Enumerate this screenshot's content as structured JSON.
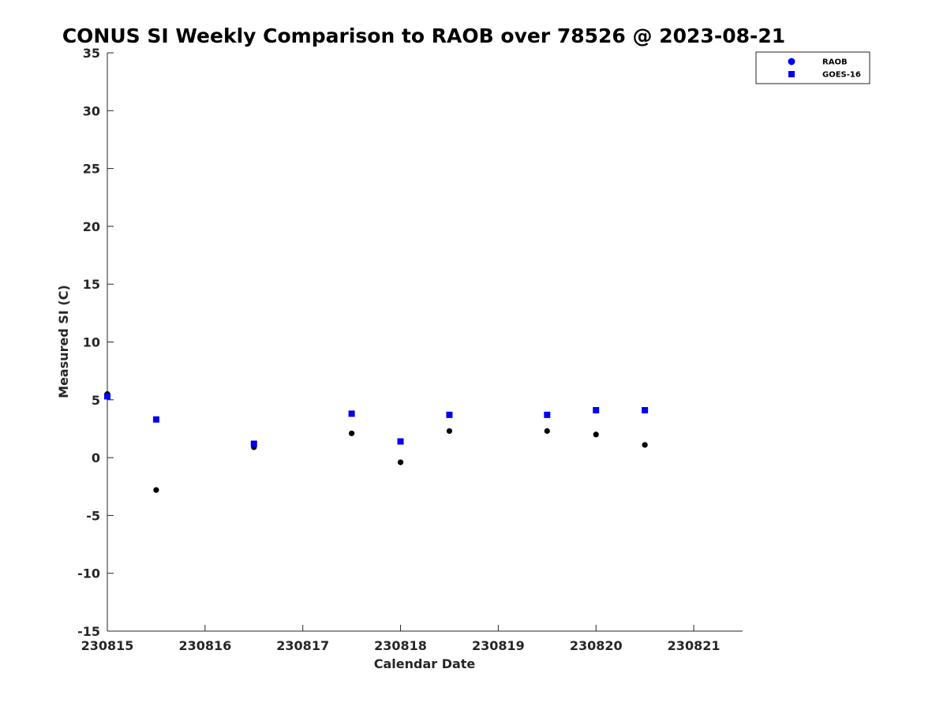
{
  "chart_data": {
    "type": "scatter",
    "title": "CONUS SI Weekly Comparison to RAOB over 78526 @ 2023-08-21",
    "xlabel": "Calendar Date",
    "ylabel": "Measured SI (C)",
    "xlim": [
      "2023-08-15T00:00",
      "2023-08-21T12:00"
    ],
    "ylim": [
      -15,
      35
    ],
    "x_ticks": [
      "2023-08-15",
      "2023-08-16",
      "2023-08-17",
      "2023-08-18",
      "2023-08-19",
      "2023-08-20",
      "2023-08-21"
    ],
    "x_tick_labels": [
      "230815",
      "230816",
      "230817",
      "230818",
      "230819",
      "230820",
      "230821"
    ],
    "y_ticks": [
      -15,
      -10,
      -5,
      0,
      5,
      10,
      15,
      20,
      25,
      30,
      35
    ],
    "grid": false,
    "legend_position": "top-right",
    "series": [
      {
        "name": "RAOB",
        "marker": "circle",
        "color": "#000000",
        "legend_color": "#0000ee",
        "points": [
          {
            "x": "2023-08-15T00:00",
            "y": 5.5
          },
          {
            "x": "2023-08-15T12:00",
            "y": -2.8
          },
          {
            "x": "2023-08-16T12:00",
            "y": 0.9
          },
          {
            "x": "2023-08-17T12:00",
            "y": 2.1
          },
          {
            "x": "2023-08-18T00:00",
            "y": -0.4
          },
          {
            "x": "2023-08-18T12:00",
            "y": 2.3
          },
          {
            "x": "2023-08-19T12:00",
            "y": 2.3
          },
          {
            "x": "2023-08-20T00:00",
            "y": 2.0
          },
          {
            "x": "2023-08-20T12:00",
            "y": 1.1
          }
        ]
      },
      {
        "name": "GOES-16",
        "marker": "square",
        "color": "#0000ee",
        "legend_color": "#0000ee",
        "points": [
          {
            "x": "2023-08-15T00:00",
            "y": 5.3
          },
          {
            "x": "2023-08-15T12:00",
            "y": 3.3
          },
          {
            "x": "2023-08-16T12:00",
            "y": 1.2
          },
          {
            "x": "2023-08-17T12:00",
            "y": 3.8
          },
          {
            "x": "2023-08-18T00:00",
            "y": 1.4
          },
          {
            "x": "2023-08-18T12:00",
            "y": 3.7
          },
          {
            "x": "2023-08-19T12:00",
            "y": 3.7
          },
          {
            "x": "2023-08-20T00:00",
            "y": 4.1
          },
          {
            "x": "2023-08-20T12:00",
            "y": 4.1
          }
        ]
      }
    ]
  }
}
